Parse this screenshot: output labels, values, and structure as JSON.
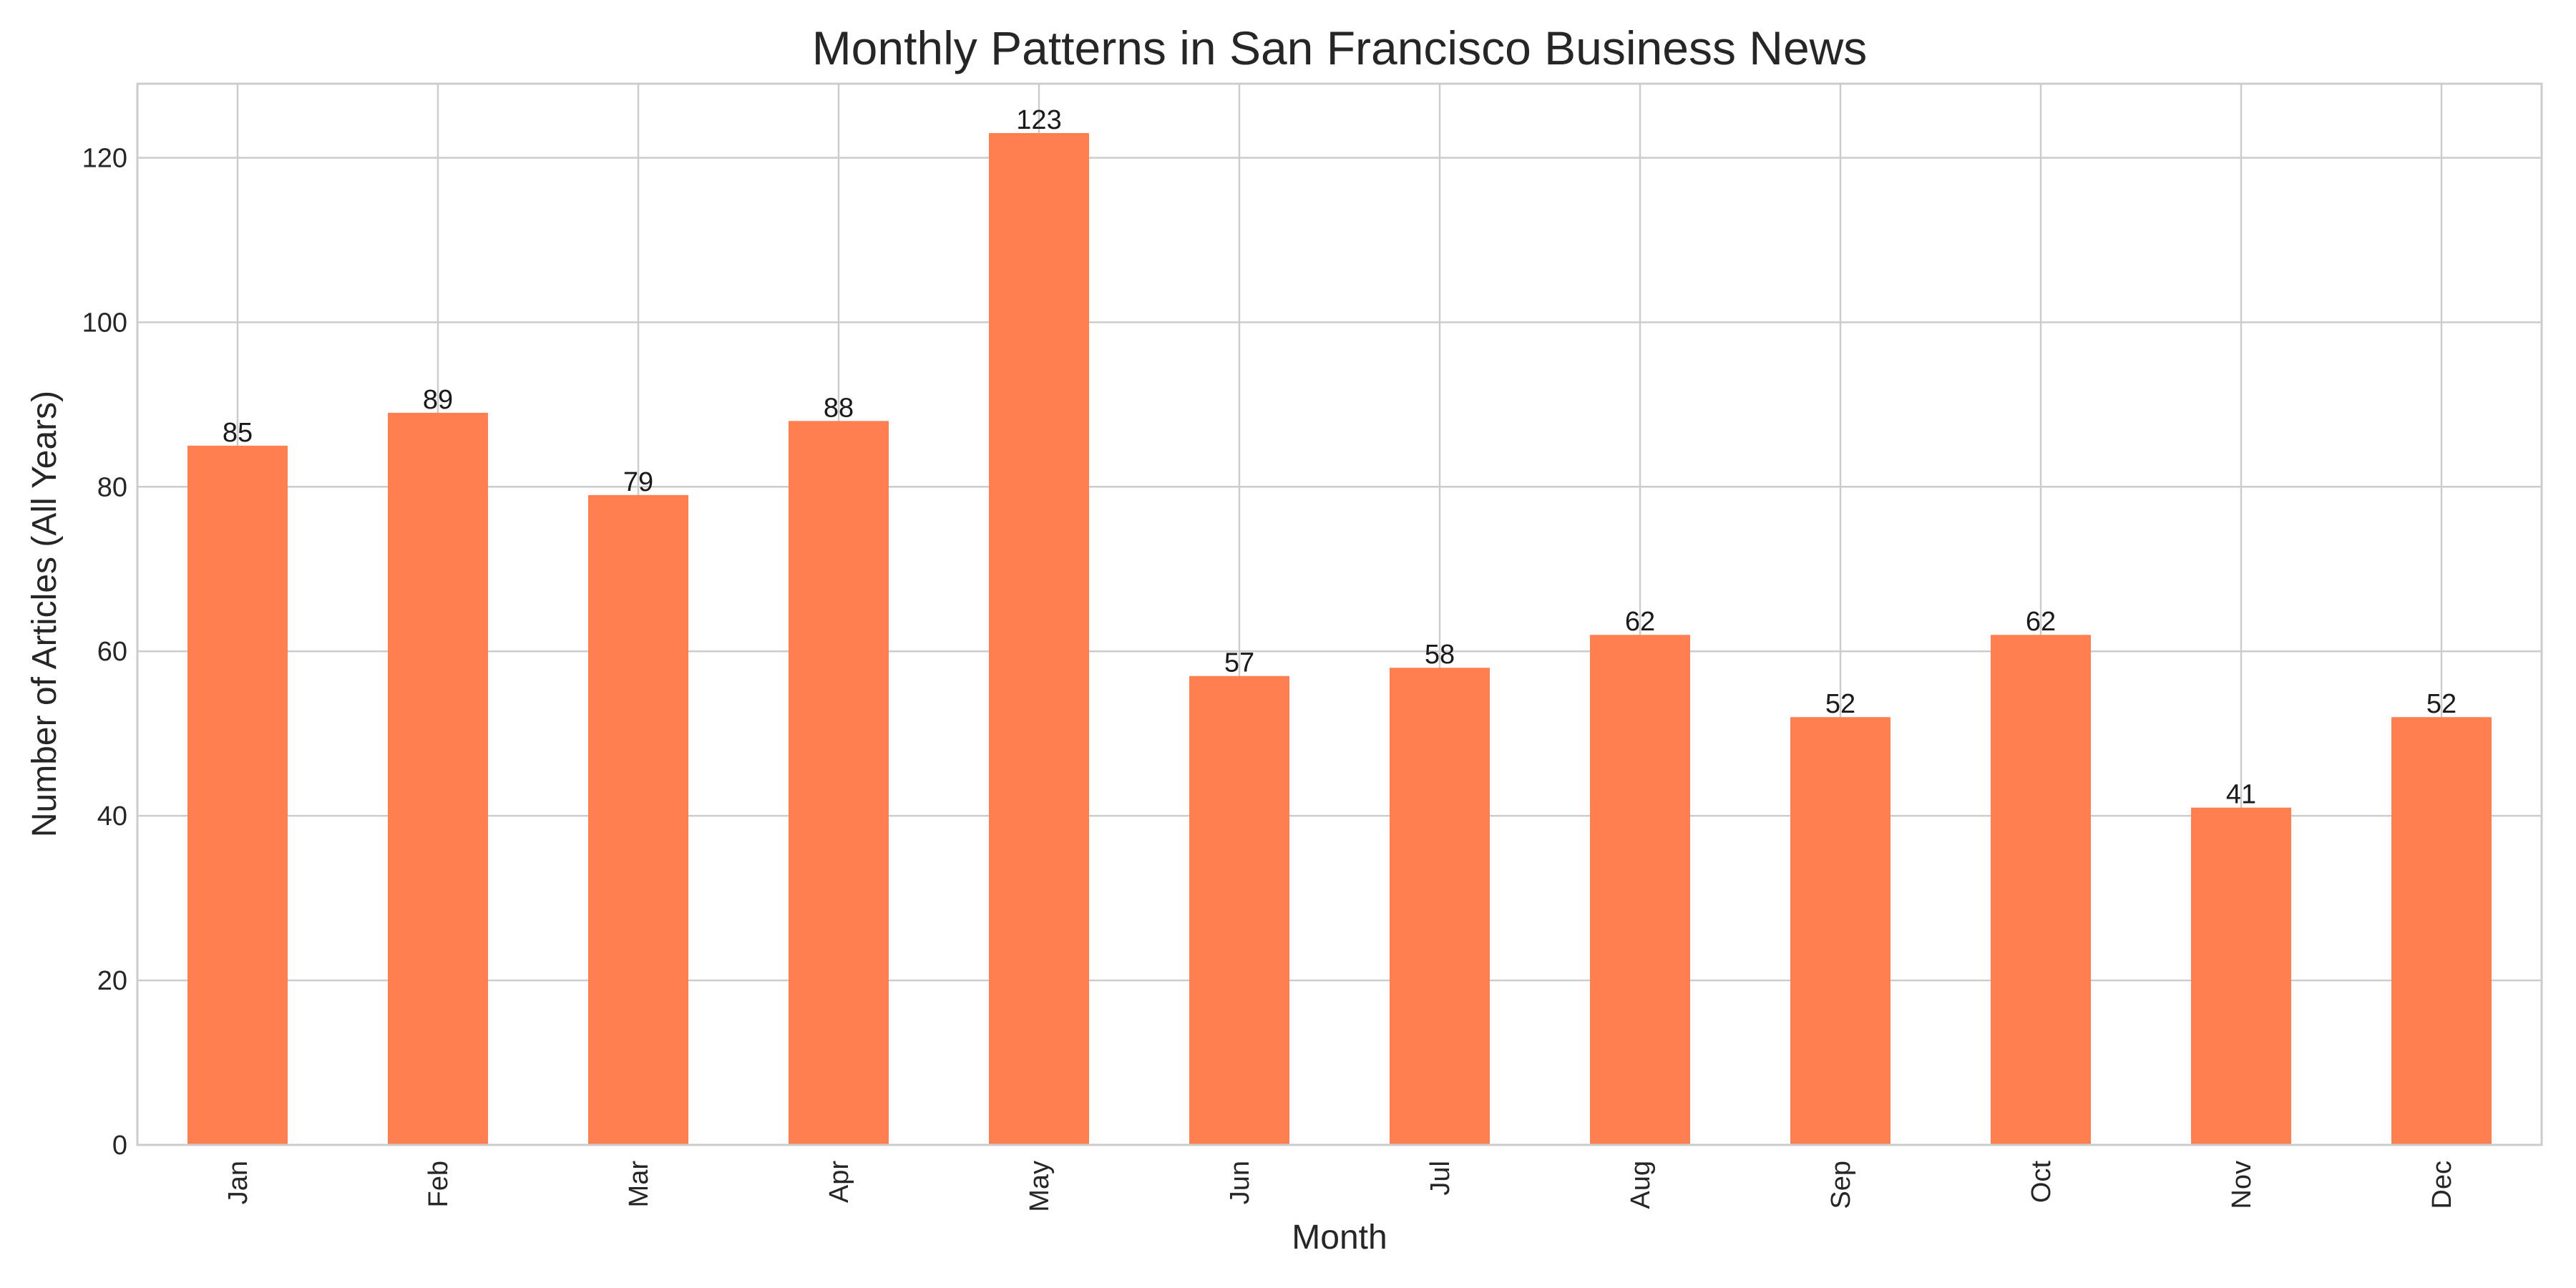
{
  "chart_data": {
    "type": "bar",
    "title": "Monthly Patterns in San Francisco Business News",
    "xlabel": "Month",
    "ylabel": "Number of Articles (All Years)",
    "categories": [
      "Jan",
      "Feb",
      "Mar",
      "Apr",
      "May",
      "Jun",
      "Jul",
      "Aug",
      "Sep",
      "Oct",
      "Nov",
      "Dec"
    ],
    "values": [
      85,
      89,
      79,
      88,
      123,
      57,
      58,
      62,
      52,
      62,
      41,
      52
    ],
    "ylim": [
      0,
      129
    ],
    "yticks": [
      0,
      20,
      40,
      60,
      80,
      100,
      120
    ],
    "bar_color": "#ff7f50",
    "grid": true,
    "legend": "none",
    "data_labels": true
  }
}
